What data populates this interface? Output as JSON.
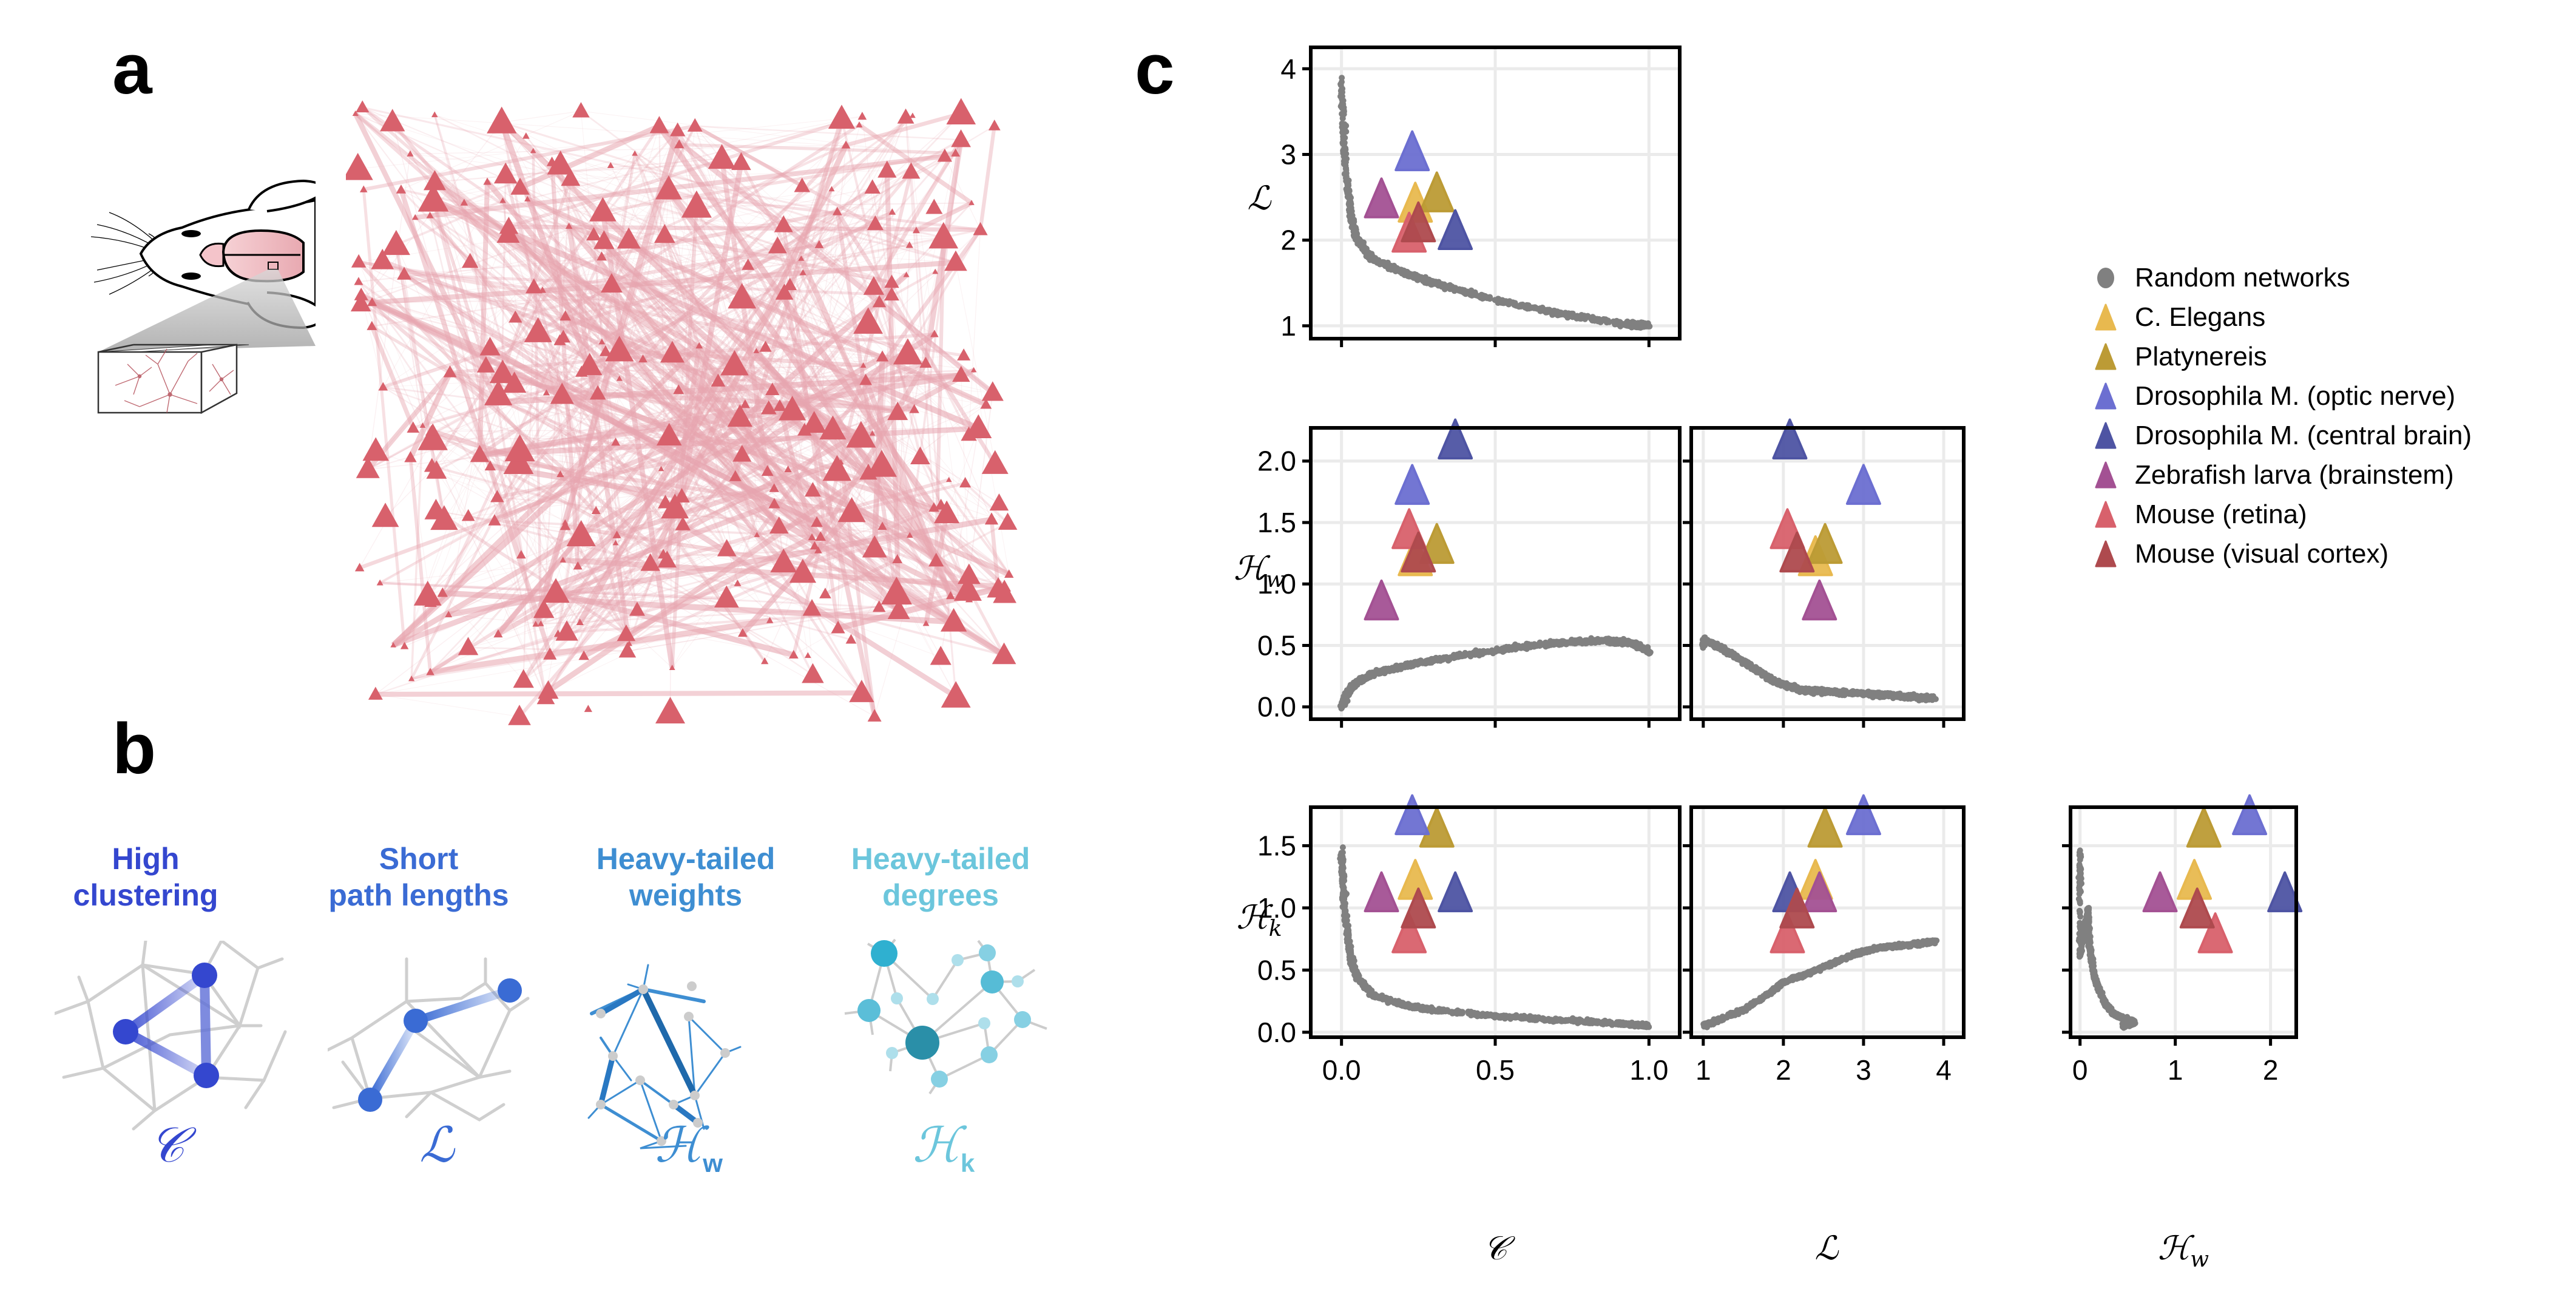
{
  "panels": {
    "a": {
      "letter": "a"
    },
    "b": {
      "letter": "b",
      "properties": [
        {
          "title_line1": "High",
          "title_line2": "clustering",
          "symbol": "𝒞",
          "color": "#3447CF"
        },
        {
          "title_line1": "Short",
          "title_line2": "path lengths",
          "symbol": "ℒ",
          "color": "#3A6BD4"
        },
        {
          "title_line1": "Heavy-tailed",
          "title_line2": "weights",
          "symbol": "ℋ",
          "subscript": "w",
          "color": "#3E8ED2"
        },
        {
          "title_line1": "Heavy-tailed",
          "title_line2": "degrees",
          "symbol": "ℋ",
          "subscript": "k",
          "color": "#6CC6DC"
        }
      ]
    },
    "c": {
      "letter": "c"
    }
  },
  "legend": {
    "items": [
      {
        "label": "Random networks",
        "shape": "circle",
        "color": "#808080"
      },
      {
        "label": "C. Elegans",
        "shape": "triangle",
        "color": "#E8B94F"
      },
      {
        "label": "Platynereis",
        "shape": "triangle",
        "color": "#BC9B35"
      },
      {
        "label": "Drosophila M. (optic nerve)",
        "shape": "triangle",
        "color": "#6C6FD1"
      },
      {
        "label": "Drosophila M. (central brain)",
        "shape": "triangle",
        "color": "#4E54A3"
      },
      {
        "label": "Zebrafish larva (brainstem)",
        "shape": "triangle",
        "color": "#A35193"
      },
      {
        "label": "Mouse (retina)",
        "shape": "triangle",
        "color": "#D8616C"
      },
      {
        "label": "Mouse (visual cortex)",
        "shape": "triangle",
        "color": "#AE4A4E"
      }
    ]
  },
  "chart_data": {
    "type": "scatter",
    "title": "",
    "layout": "lower-triangular scatter matrix",
    "variables": {
      "C": {
        "label": "𝒞",
        "ticks": [
          0.0,
          0.5,
          1.0
        ],
        "tick_labels": [
          "0.0",
          "0.5",
          "1.0"
        ],
        "range": [
          -0.1,
          1.1
        ]
      },
      "L": {
        "label": "ℒ",
        "ticks": [
          1,
          2,
          3,
          4
        ],
        "tick_labels": [
          "1",
          "2",
          "3",
          "4"
        ],
        "range": [
          0.85,
          4.25
        ]
      },
      "Hw": {
        "label": "ℋ",
        "label_sub": "w",
        "ticks": [
          0.0,
          0.5,
          1.0,
          1.5,
          2.0
        ],
        "tick_labels": [
          "0.0",
          "0.5",
          "1.0",
          "1.5",
          "2.0"
        ],
        "axis_ticks_x": [
          0,
          1,
          2
        ],
        "axis_tick_labels_x": [
          "0",
          "1",
          "2"
        ],
        "range": [
          -0.1,
          2.27
        ]
      },
      "Hk": {
        "label": "ℋ",
        "label_sub": "k",
        "ticks": [
          0.0,
          0.5,
          1.0,
          1.5
        ],
        "tick_labels": [
          "0.0",
          "0.5",
          "1.0",
          "1.5"
        ],
        "range": [
          -0.04,
          1.81
        ]
      }
    },
    "subplots": [
      {
        "x": "C",
        "y": "L",
        "row": 0,
        "col": 0
      },
      {
        "x": "C",
        "y": "Hw",
        "row": 1,
        "col": 0
      },
      {
        "x": "L",
        "y": "Hw",
        "row": 1,
        "col": 1
      },
      {
        "x": "C",
        "y": "Hk",
        "row": 2,
        "col": 0
      },
      {
        "x": "L",
        "y": "Hk",
        "row": 2,
        "col": 1
      },
      {
        "x": "Hw",
        "y": "Hk",
        "row": 2,
        "col": 2
      }
    ],
    "grid": true,
    "legend_position": "top-right",
    "series": [
      {
        "name": "C. Elegans",
        "color": "#E8B94F",
        "C": 0.24,
        "L": 2.4,
        "Hw": 1.2,
        "Hk": 1.2
      },
      {
        "name": "Platynereis",
        "color": "#BC9B35",
        "C": 0.31,
        "L": 2.52,
        "Hw": 1.3,
        "Hk": 1.62
      },
      {
        "name": "Drosophila M. (optic nerve)",
        "color": "#6C6FD1",
        "C": 0.23,
        "L": 3.0,
        "Hw": 1.78,
        "Hk": 1.72
      },
      {
        "name": "Drosophila M. (central brain)",
        "color": "#4E54A3",
        "C": 0.37,
        "L": 2.08,
        "Hw": 2.15,
        "Hk": 1.1
      },
      {
        "name": "Zebrafish larva (brainstem)",
        "color": "#A35193",
        "C": 0.13,
        "L": 2.45,
        "Hw": 0.84,
        "Hk": 1.1
      },
      {
        "name": "Mouse (retina)",
        "color": "#D8616C",
        "C": 0.22,
        "L": 2.05,
        "Hw": 1.42,
        "Hk": 0.77
      },
      {
        "name": "Mouse (visual cortex)",
        "color": "#AE4A4E",
        "C": 0.25,
        "L": 2.17,
        "Hw": 1.23,
        "Hk": 0.97
      }
    ],
    "random_networks": {
      "name": "Random networks",
      "color": "#808080",
      "trend_C_vs_L": [
        [
          0.0,
          3.9
        ],
        [
          0.01,
          3.0
        ],
        [
          0.03,
          2.3
        ],
        [
          0.05,
          2.0
        ],
        [
          0.1,
          1.78
        ],
        [
          0.2,
          1.62
        ],
        [
          0.3,
          1.5
        ],
        [
          0.5,
          1.3
        ],
        [
          0.7,
          1.15
        ],
        [
          0.9,
          1.03
        ],
        [
          1.0,
          1.0
        ]
      ],
      "trend_C_vs_Hw": [
        [
          0.0,
          0.0
        ],
        [
          0.02,
          0.12
        ],
        [
          0.05,
          0.2
        ],
        [
          0.1,
          0.27
        ],
        [
          0.2,
          0.33
        ],
        [
          0.3,
          0.38
        ],
        [
          0.5,
          0.46
        ],
        [
          0.7,
          0.52
        ],
        [
          0.85,
          0.54
        ],
        [
          0.95,
          0.52
        ],
        [
          1.0,
          0.45
        ]
      ],
      "trend_L_vs_Hw": [
        [
          1.0,
          0.5
        ],
        [
          1.02,
          0.55
        ],
        [
          1.3,
          0.45
        ],
        [
          1.6,
          0.33
        ],
        [
          1.9,
          0.2
        ],
        [
          2.2,
          0.14
        ],
        [
          2.6,
          0.12
        ],
        [
          3.0,
          0.11
        ],
        [
          3.4,
          0.09
        ],
        [
          3.9,
          0.07
        ]
      ],
      "trend_C_vs_Hk": [
        [
          0.0,
          1.48
        ],
        [
          0.01,
          1.0
        ],
        [
          0.03,
          0.6
        ],
        [
          0.05,
          0.45
        ],
        [
          0.1,
          0.3
        ],
        [
          0.2,
          0.22
        ],
        [
          0.3,
          0.18
        ],
        [
          0.5,
          0.13
        ],
        [
          0.7,
          0.1
        ],
        [
          0.9,
          0.07
        ],
        [
          1.0,
          0.05
        ]
      ],
      "trend_L_vs_Hk": [
        [
          1.0,
          0.05
        ],
        [
          1.2,
          0.1
        ],
        [
          1.5,
          0.18
        ],
        [
          1.8,
          0.3
        ],
        [
          2.0,
          0.4
        ],
        [
          2.3,
          0.47
        ],
        [
          2.6,
          0.55
        ],
        [
          2.9,
          0.63
        ],
        [
          3.2,
          0.68
        ],
        [
          3.5,
          0.7
        ],
        [
          3.9,
          0.73
        ]
      ],
      "trend_Hw_vs_Hk": [
        [
          0.0,
          1.48
        ],
        [
          0.0,
          0.6
        ],
        [
          0.08,
          1.0
        ],
        [
          0.1,
          0.7
        ],
        [
          0.15,
          0.45
        ],
        [
          0.25,
          0.25
        ],
        [
          0.35,
          0.15
        ],
        [
          0.5,
          0.1
        ],
        [
          0.57,
          0.08
        ],
        [
          0.45,
          0.05
        ]
      ]
    }
  }
}
